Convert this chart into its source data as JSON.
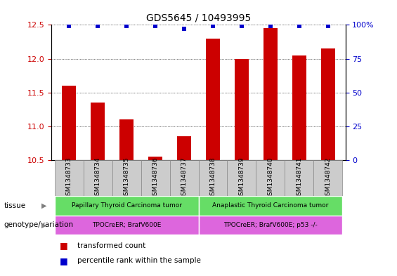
{
  "title": "GDS5645 / 10493995",
  "samples": [
    "GSM1348733",
    "GSM1348734",
    "GSM1348735",
    "GSM1348736",
    "GSM1348737",
    "GSM1348738",
    "GSM1348739",
    "GSM1348740",
    "GSM1348741",
    "GSM1348742"
  ],
  "bar_values": [
    11.6,
    11.35,
    11.1,
    10.55,
    10.85,
    12.3,
    12.0,
    12.45,
    12.05,
    12.15
  ],
  "percentile_values": [
    99,
    99,
    99,
    99,
    97,
    99,
    99,
    99,
    99,
    99
  ],
  "bar_color": "#cc0000",
  "dot_color": "#0000cc",
  "ylim_left": [
    10.5,
    12.5
  ],
  "ylim_right": [
    0,
    100
  ],
  "yticks_left": [
    10.5,
    11.0,
    11.5,
    12.0,
    12.5
  ],
  "yticks_right": [
    0,
    25,
    50,
    75,
    100
  ],
  "tissue_labels": [
    "Papillary Thyroid Carcinoma tumor",
    "Anaplastic Thyroid Carcinoma tumor"
  ],
  "tissue_color": "#66dd66",
  "tissue_splits": [
    5,
    5
  ],
  "genotype_labels": [
    "TPOCreER; BrafV600E",
    "TPOCreER; BrafV600E; p53 -/-"
  ],
  "genotype_color": "#dd66dd",
  "legend_items": [
    {
      "label": "transformed count",
      "color": "#cc0000"
    },
    {
      "label": "percentile rank within the sample",
      "color": "#0000cc"
    }
  ],
  "tissue_row_label": "tissue",
  "genotype_row_label": "genotype/variation",
  "bar_width": 0.5,
  "background_color": "#ffffff",
  "tick_label_color_left": "#cc0000",
  "tick_label_color_right": "#0000cc",
  "sample_box_color": "#cccccc",
  "sample_box_edge": "#888888"
}
